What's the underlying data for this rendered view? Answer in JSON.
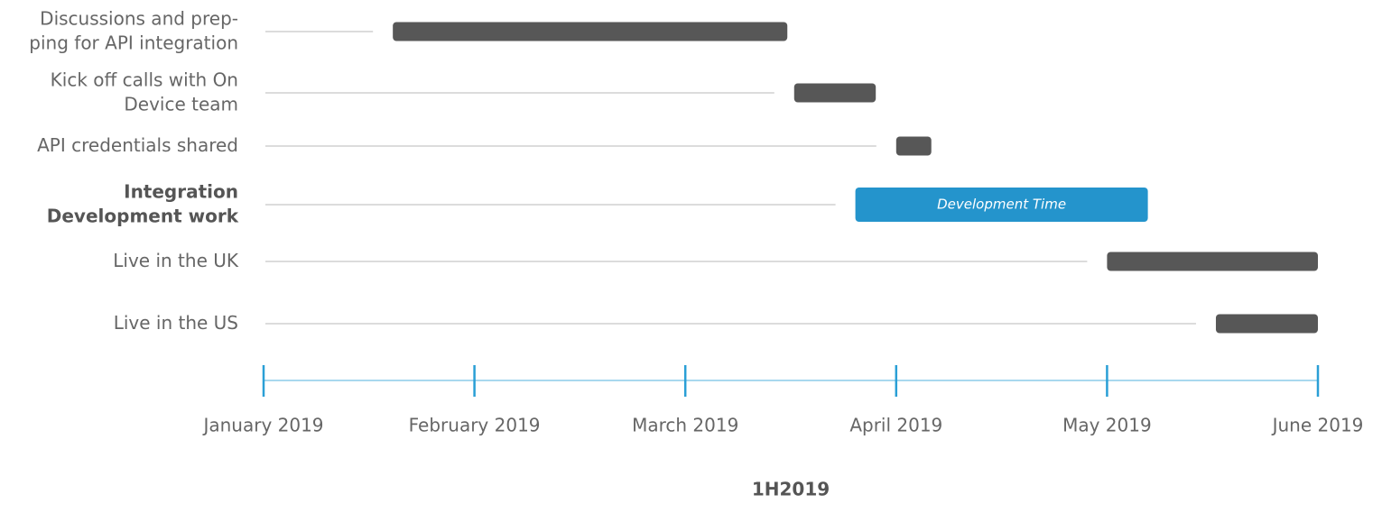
{
  "chart_data": {
    "type": "gantt",
    "xlabel": "1H2019",
    "xlim": [
      "2019-01-01",
      "2019-06-01"
    ],
    "xticks": [
      {
        "value": "2019-01-01",
        "label": "January 2019"
      },
      {
        "value": "2019-02-01",
        "label": "February 2019"
      },
      {
        "value": "2019-03-01",
        "label": "March 2019"
      },
      {
        "value": "2019-04-01",
        "label": "April 2019"
      },
      {
        "value": "2019-05-01",
        "label": "May 2019"
      },
      {
        "value": "2019-06-01",
        "label": "June 2019"
      }
    ],
    "tasks": [
      {
        "label": [
          "Discussions and prep-",
          "ping for API integration"
        ],
        "start": "2019-01-20",
        "end": "2019-03-16",
        "color": "#575757",
        "bold": false
      },
      {
        "label": [
          "Kick off calls with On",
          "Device team"
        ],
        "start": "2019-03-17",
        "end": "2019-03-29",
        "color": "#575757",
        "bold": false
      },
      {
        "label": [
          "API credentials shared"
        ],
        "start": "2019-04-01",
        "end": "2019-04-06",
        "color": "#575757",
        "bold": false
      },
      {
        "label": [
          "Integration",
          "Development work"
        ],
        "start": "2019-03-26",
        "end": "2019-05-07",
        "color": "#2494cc",
        "bold": true,
        "bar_label": "Development Time"
      },
      {
        "label": [
          "Live in the UK"
        ],
        "start": "2019-05-01",
        "end": "2019-06-01",
        "color": "#575757",
        "bold": false
      },
      {
        "label": [
          "Live in the US"
        ],
        "start": "2019-05-17",
        "end": "2019-06-01",
        "color": "#575757",
        "bold": false
      }
    ]
  }
}
